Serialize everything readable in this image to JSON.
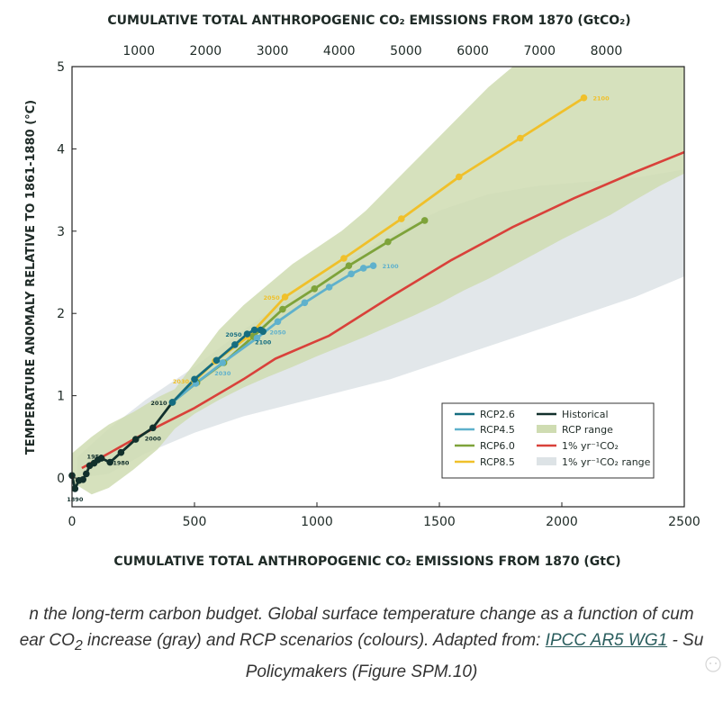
{
  "chart_data": {
    "type": "line",
    "title": "",
    "top_axis_label": "CUMULATIVE TOTAL ANTHROPOGENIC CO₂ EMISSIONS FROM 1870 (GtCO₂)",
    "top_ticks": [
      "1000",
      "2000",
      "3000",
      "4000",
      "5000",
      "6000",
      "7000",
      "8000"
    ],
    "xlabel": "CUMULATIVE TOTAL ANTHROPOGENIC CO₂ EMISSIONS FROM 1870 (GtC)",
    "ylabel": "TEMPERATURE ANOMALY RELATIVE TO 1861-1880 (°C)",
    "xlim": [
      0,
      2500
    ],
    "ylim": [
      -0.35,
      5
    ],
    "x_ticks": [
      0,
      500,
      1000,
      1500,
      2000,
      2500
    ],
    "y_ticks": [
      0,
      1,
      2,
      3,
      4,
      5
    ],
    "series": [
      {
        "name": "Historical",
        "color": "#12302c",
        "x": [
          0,
          12,
          28,
          45,
          58,
          72,
          90,
          105,
          120,
          155,
          200,
          260,
          330,
          410
        ],
        "y": [
          0.03,
          -0.13,
          -0.03,
          -0.02,
          0.05,
          0.15,
          0.18,
          0.22,
          0.24,
          0.19,
          0.31,
          0.47,
          0.61,
          0.92
        ],
        "labels": [
          {
            "i": 1,
            "text": "1890",
            "pos": "below"
          },
          {
            "i": 5,
            "text": "1950",
            "pos": "above"
          },
          {
            "i": 10,
            "text": "1980",
            "pos": "below"
          },
          {
            "i": 12,
            "text": "2000",
            "pos": "below"
          },
          {
            "i": 13,
            "text": "2010",
            "pos": "left"
          }
        ]
      },
      {
        "name": "RCP2.6",
        "color": "#156d80",
        "x": [
          410,
          500,
          590,
          665,
          715,
          745,
          770,
          780
        ],
        "y": [
          0.92,
          1.2,
          1.43,
          1.62,
          1.75,
          1.8,
          1.8,
          1.78
        ],
        "labels": [
          {
            "i": 4,
            "text": "2050",
            "pos": "left"
          },
          {
            "i": 7,
            "text": "2100",
            "pos": "below"
          }
        ]
      },
      {
        "name": "RCP4.5",
        "color": "#5fb1cc",
        "x": [
          410,
          505,
          615,
          755,
          840,
          950,
          1050,
          1140,
          1190,
          1230
        ],
        "y": [
          0.92,
          1.15,
          1.4,
          1.7,
          1.9,
          2.13,
          2.32,
          2.48,
          2.55,
          2.58
        ],
        "labels": [
          {
            "i": 2,
            "text": "2030",
            "pos": "below"
          },
          {
            "i": 4,
            "text": "2050",
            "pos": "below"
          },
          {
            "i": 9,
            "text": "2100",
            "pos": "right"
          }
        ]
      },
      {
        "name": "RCP6.0",
        "color": "#7ea33a",
        "x": [
          410,
          510,
          620,
          740,
          860,
          990,
          1130,
          1290,
          1440
        ],
        "y": [
          0.92,
          1.16,
          1.4,
          1.72,
          2.05,
          2.3,
          2.58,
          2.87,
          3.13
        ],
        "labels": []
      },
      {
        "name": "RCP8.5",
        "color": "#f0c02a",
        "x": [
          410,
          500,
          585,
          720,
          870,
          1110,
          1345,
          1580,
          1830,
          2090
        ],
        "y": [
          0.92,
          1.18,
          1.42,
          1.72,
          2.2,
          2.67,
          3.15,
          3.66,
          4.13,
          4.62
        ],
        "labels": [
          {
            "i": 1,
            "text": "2030",
            "pos": "left"
          },
          {
            "i": 4,
            "text": "2050",
            "pos": "left"
          },
          {
            "i": 9,
            "text": "2100",
            "pos": "right"
          }
        ]
      },
      {
        "name": "1% yr⁻¹CO₂",
        "color": "#d9413a",
        "x": [
          40,
          150,
          300,
          500,
          700,
          830,
          1050,
          1300,
          1550,
          1800,
          2050,
          2300,
          2500
        ],
        "y": [
          0.12,
          0.3,
          0.55,
          0.85,
          1.2,
          1.45,
          1.73,
          2.2,
          2.65,
          3.05,
          3.4,
          3.72,
          3.96
        ],
        "labels": []
      }
    ],
    "bands": [
      {
        "name": "1% yr⁻¹CO₂ range",
        "color": "#dde3e6",
        "x": [
          20,
          150,
          300,
          500,
          700,
          900,
          1100,
          1300,
          1500,
          1700,
          1900,
          2100,
          2300,
          2500
        ],
        "upper": [
          0.25,
          0.6,
          0.95,
          1.35,
          1.8,
          2.2,
          2.6,
          2.95,
          3.25,
          3.45,
          3.55,
          3.6,
          3.65,
          3.75
        ],
        "lower": [
          0.0,
          0.05,
          0.3,
          0.55,
          0.75,
          0.9,
          1.05,
          1.2,
          1.4,
          1.6,
          1.8,
          2.0,
          2.2,
          2.45
        ]
      },
      {
        "name": "RCP range",
        "color": "#cfdcb2",
        "x": [
          0,
          80,
          150,
          250,
          350,
          420,
          500,
          600,
          700,
          800,
          900,
          1000,
          1100,
          1200,
          1300,
          1400,
          1500,
          1600,
          1700,
          1800,
          1900,
          2000,
          2100,
          2200,
          2300,
          2400,
          2500
        ],
        "upper": [
          0.3,
          0.5,
          0.65,
          0.8,
          0.98,
          1.08,
          1.4,
          1.8,
          2.1,
          2.35,
          2.6,
          2.8,
          3.0,
          3.25,
          3.55,
          3.85,
          4.15,
          4.45,
          4.75,
          5.0,
          5.0,
          5.0,
          5.0,
          5.0,
          5.0,
          5.0,
          5.0
        ],
        "lower": [
          -0.05,
          -0.2,
          -0.12,
          0.1,
          0.35,
          0.6,
          0.78,
          0.95,
          1.1,
          1.23,
          1.35,
          1.48,
          1.6,
          1.72,
          1.85,
          1.98,
          2.12,
          2.28,
          2.42,
          2.58,
          2.74,
          2.9,
          3.05,
          3.2,
          3.38,
          3.55,
          3.7
        ]
      }
    ],
    "legend": {
      "placement": "bottom-right",
      "entries": [
        {
          "label": "RCP2.6",
          "color": "#156d80",
          "kind": "line"
        },
        {
          "label": "Historical",
          "color": "#12302c",
          "kind": "line"
        },
        {
          "label": "RCP4.5",
          "color": "#5fb1cc",
          "kind": "line"
        },
        {
          "label": "RCP range",
          "color": "#cfdcb2",
          "kind": "box"
        },
        {
          "label": "RCP6.0",
          "color": "#7ea33a",
          "kind": "line"
        },
        {
          "label": "1% yr⁻¹CO₂",
          "color": "#d9413a",
          "kind": "line"
        },
        {
          "label": "RCP8.5",
          "color": "#f0c02a",
          "kind": "line"
        },
        {
          "label": "1% yr⁻¹CO₂ range",
          "color": "#dde3e6",
          "kind": "box"
        }
      ]
    }
  },
  "caption": {
    "line1": "n the long-term carbon budget. Global surface temperature change as a function of cum",
    "line2_a": "ear CO",
    "line2_sub": "2",
    "line2_b": " increase (gray) and RCP scenarios (colours). Adapted from: ",
    "line2_link": "IPCC AR5 WG1",
    "line2_c": " - Su",
    "line3": "Policymakers (Figure SPM.10)"
  }
}
